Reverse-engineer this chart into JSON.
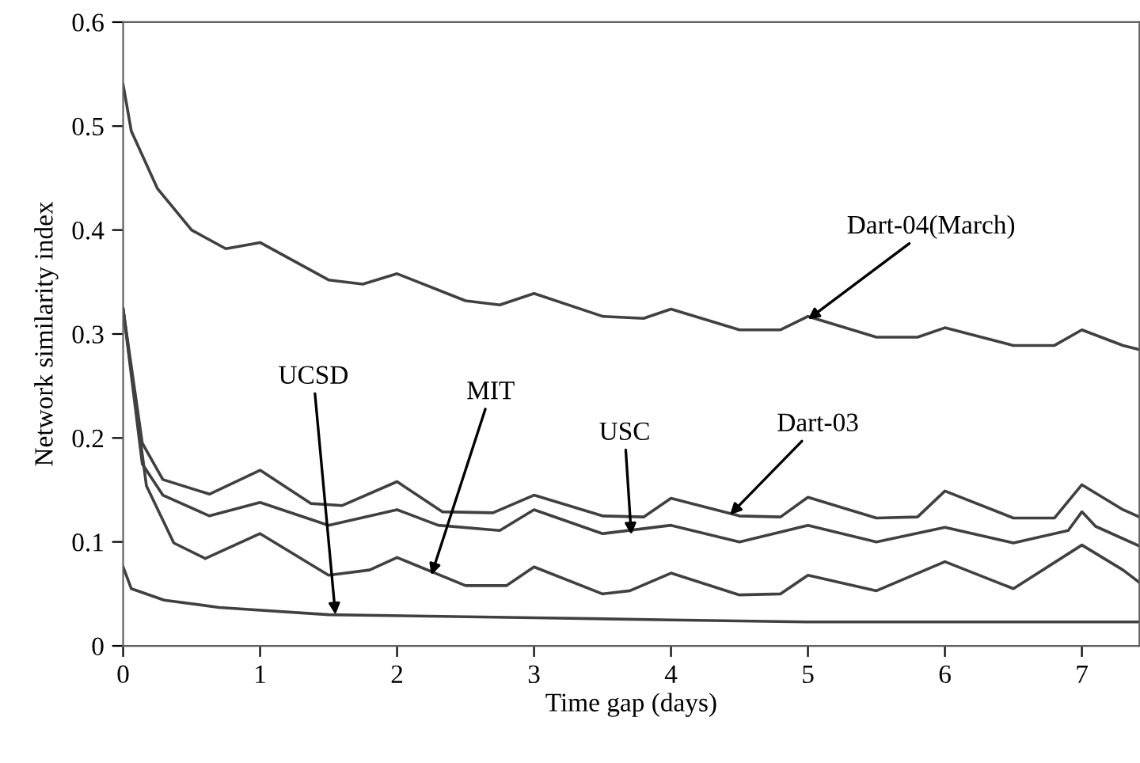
{
  "chart_data": {
    "type": "line",
    "xlabel": "Time gap (days)",
    "ylabel": "Network similarity index",
    "xlim": [
      0,
      7.42
    ],
    "xticks": [
      0,
      1,
      2,
      3,
      4,
      5,
      6,
      7
    ],
    "ylim": [
      0,
      0.6
    ],
    "yticks": [
      0,
      0.1,
      0.2,
      0.3,
      0.4,
      0.5,
      0.6
    ],
    "marker": "none",
    "line_style": "solid",
    "series": [
      {
        "color": "#404040",
        "x": [
          0,
          0.06,
          0.25,
          0.5,
          0.75,
          1,
          1.5,
          1.75,
          2,
          2.5,
          2.75,
          3,
          3.5,
          3.8,
          4,
          4.5,
          4.8,
          5,
          5.5,
          5.8,
          6,
          6.5,
          6.8,
          7,
          7.3,
          7.42
        ],
        "values": [
          0.54,
          0.495,
          0.44,
          0.4,
          0.382,
          0.388,
          0.352,
          0.348,
          0.358,
          0.332,
          0.328,
          0.339,
          0.317,
          0.315,
          0.324,
          0.304,
          0.304,
          0.317,
          0.297,
          0.297,
          0.306,
          0.289,
          0.289,
          0.304,
          0.289,
          0.285
        ]
      },
      {
        "color": "#404040",
        "x": [
          0,
          0.14,
          0.29,
          0.63,
          1,
          1.37,
          1.6,
          2,
          2.33,
          2.7,
          3,
          3.5,
          3.8,
          4,
          4.5,
          4.8,
          5,
          5.5,
          5.8,
          6,
          6.5,
          6.8,
          7,
          7.3,
          7.42
        ],
        "values": [
          0.324,
          0.195,
          0.16,
          0.146,
          0.169,
          0.137,
          0.135,
          0.158,
          0.129,
          0.128,
          0.145,
          0.125,
          0.124,
          0.142,
          0.125,
          0.124,
          0.143,
          0.123,
          0.124,
          0.149,
          0.123,
          0.123,
          0.155,
          0.131,
          0.124
        ]
      },
      {
        "color": "#404040",
        "x": [
          0,
          0.14,
          0.29,
          0.63,
          1,
          1.5,
          2,
          2.3,
          2.75,
          3,
          3.5,
          4,
          4.5,
          5,
          5.5,
          6,
          6.5,
          6.9,
          7,
          7.1,
          7.42
        ],
        "values": [
          0.324,
          0.175,
          0.145,
          0.125,
          0.138,
          0.116,
          0.131,
          0.116,
          0.111,
          0.131,
          0.108,
          0.116,
          0.1,
          0.116,
          0.1,
          0.114,
          0.099,
          0.111,
          0.129,
          0.115,
          0.096
        ]
      },
      {
        "color": "#404040",
        "x": [
          0,
          0.17,
          0.37,
          0.6,
          1,
          1.5,
          1.8,
          2,
          2.5,
          2.8,
          3,
          3.5,
          3.7,
          4,
          4.5,
          4.8,
          5,
          5.5,
          6,
          6.5,
          7,
          7.3,
          7.42
        ],
        "values": [
          0.324,
          0.154,
          0.099,
          0.084,
          0.108,
          0.068,
          0.073,
          0.085,
          0.058,
          0.058,
          0.076,
          0.05,
          0.053,
          0.07,
          0.049,
          0.05,
          0.068,
          0.053,
          0.081,
          0.055,
          0.097,
          0.073,
          0.061
        ]
      },
      {
        "color": "#404040",
        "x": [
          0,
          0.06,
          0.3,
          0.7,
          1.5,
          3,
          4,
          5,
          6,
          7,
          7.42
        ],
        "values": [
          0.076,
          0.055,
          0.044,
          0.037,
          0.03,
          0.027,
          0.025,
          0.023,
          0.023,
          0.023,
          0.023
        ]
      }
    ],
    "annotations": [
      {
        "text": "UCSD",
        "x": 1.55,
        "y": 0.03
      },
      {
        "text": "MIT",
        "x": 2.25,
        "y": 0.068
      },
      {
        "text": "USC",
        "x": 3.71,
        "y": 0.107
      },
      {
        "text": "Dart-03",
        "x": 4.43,
        "y": 0.126
      },
      {
        "text": "Dart-04(March)",
        "x": 5.0,
        "y": 0.314
      }
    ]
  }
}
